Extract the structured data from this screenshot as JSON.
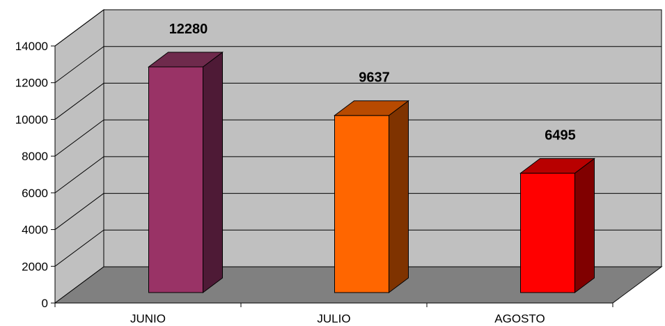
{
  "chart_data": {
    "type": "bar",
    "title": "",
    "xlabel": "",
    "ylabel": "",
    "categories": [
      "JUNIO",
      "JULIO",
      "AGOSTO"
    ],
    "values": [
      12280,
      9637,
      6495
    ],
    "data_labels": [
      "12280",
      "9637",
      "6495"
    ],
    "y_ticks": [
      "0",
      "2000",
      "4000",
      "6000",
      "8000",
      "10000",
      "12000",
      "14000"
    ],
    "ylim": [
      0,
      14000
    ],
    "grid": true,
    "legend": "none",
    "style": "3d-column",
    "colors": {
      "bars": [
        "#993366",
        "#FF6600",
        "#FF0000"
      ],
      "bar_sides": [
        "#4E1A36",
        "#7F3300",
        "#800000"
      ],
      "bar_tops": [
        "#6E2A4C",
        "#B84A00",
        "#B80000"
      ],
      "wall": "#C0C0C0",
      "floor": "#808080",
      "gridline": "#000000"
    }
  }
}
